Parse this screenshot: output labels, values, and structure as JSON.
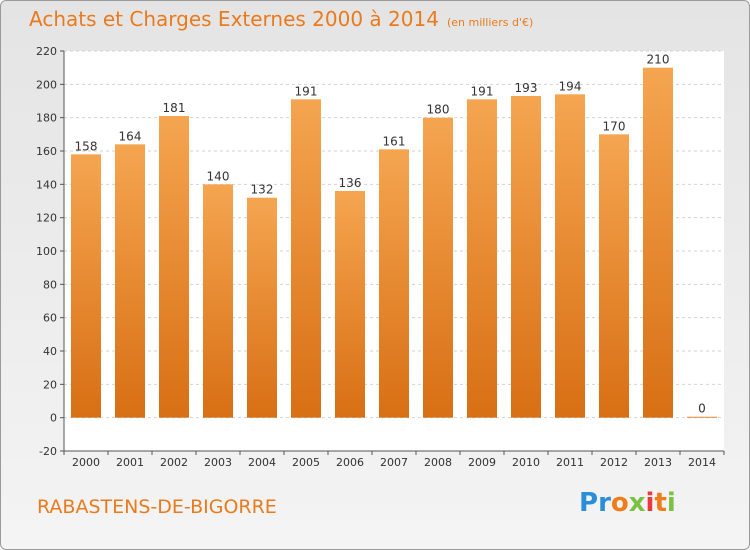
{
  "header": {
    "title": "Achats et Charges Externes 2000 à 2014",
    "subtitle": "(en milliers d'€)"
  },
  "footer": {
    "town": "RABASTENS-DE-BIGORRE",
    "logo_text": "Proxiti"
  },
  "colors": {
    "accent": "#ea7a1c",
    "bar_top": "#f5a550",
    "bar_bottom": "#d86f14"
  },
  "chart_data": {
    "type": "bar",
    "categories": [
      "2000",
      "2001",
      "2002",
      "2003",
      "2004",
      "2005",
      "2006",
      "2007",
      "2008",
      "2009",
      "2010",
      "2011",
      "2012",
      "2013",
      "2014"
    ],
    "values": [
      158,
      164,
      181,
      140,
      132,
      191,
      136,
      161,
      180,
      191,
      193,
      194,
      170,
      210,
      0
    ],
    "data_labels": [
      "158",
      "164",
      "181",
      "140",
      "132",
      "191",
      "136",
      "161",
      "180",
      "191",
      "193",
      "194",
      "170",
      "210",
      "0"
    ],
    "y_ticks": [
      -20,
      0,
      20,
      40,
      60,
      80,
      100,
      120,
      140,
      160,
      180,
      200,
      220
    ],
    "ylim": [
      -20,
      220
    ],
    "grid": true,
    "legend": "none"
  }
}
